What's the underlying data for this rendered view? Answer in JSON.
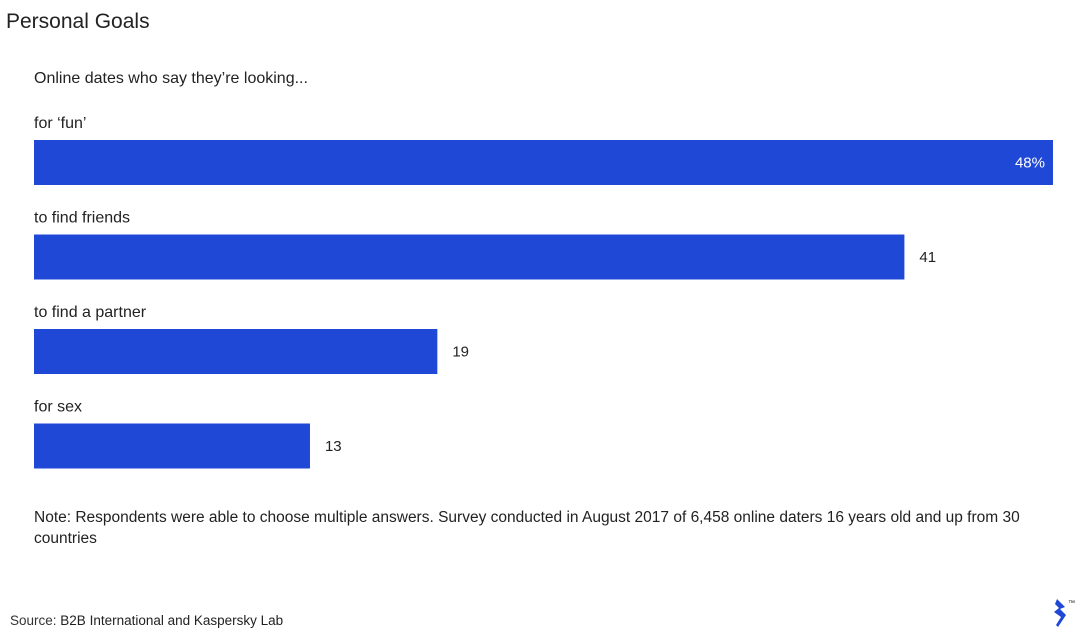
{
  "page": {
    "title": "Personal Goals",
    "note": "Note: Respondents were able to choose multiple answers. Survey conducted in August 2017 of 6,458 online daters 16 years old and up from 30 countries",
    "source_label": "Source:",
    "source_name": "B2B International and Kaspersky Lab",
    "logo_icon": "toptal-logo-icon",
    "logo_tm": "™"
  },
  "colors": {
    "bar": "#1f48d6",
    "text": "#222222",
    "logo": "#1f48d6"
  },
  "chart_data": {
    "type": "bar",
    "orientation": "horizontal",
    "title": "Online dates who say they’re looking...",
    "xlabel": "",
    "ylabel": "",
    "xlim": [
      0,
      48
    ],
    "grid": false,
    "legend": "none",
    "categories": [
      "for ‘fun’",
      "to find friends",
      "to find a partner",
      "for sex"
    ],
    "values": [
      48,
      41,
      19,
      13
    ],
    "value_labels": [
      "48%",
      "41",
      "19",
      "13"
    ],
    "unit": "%"
  }
}
